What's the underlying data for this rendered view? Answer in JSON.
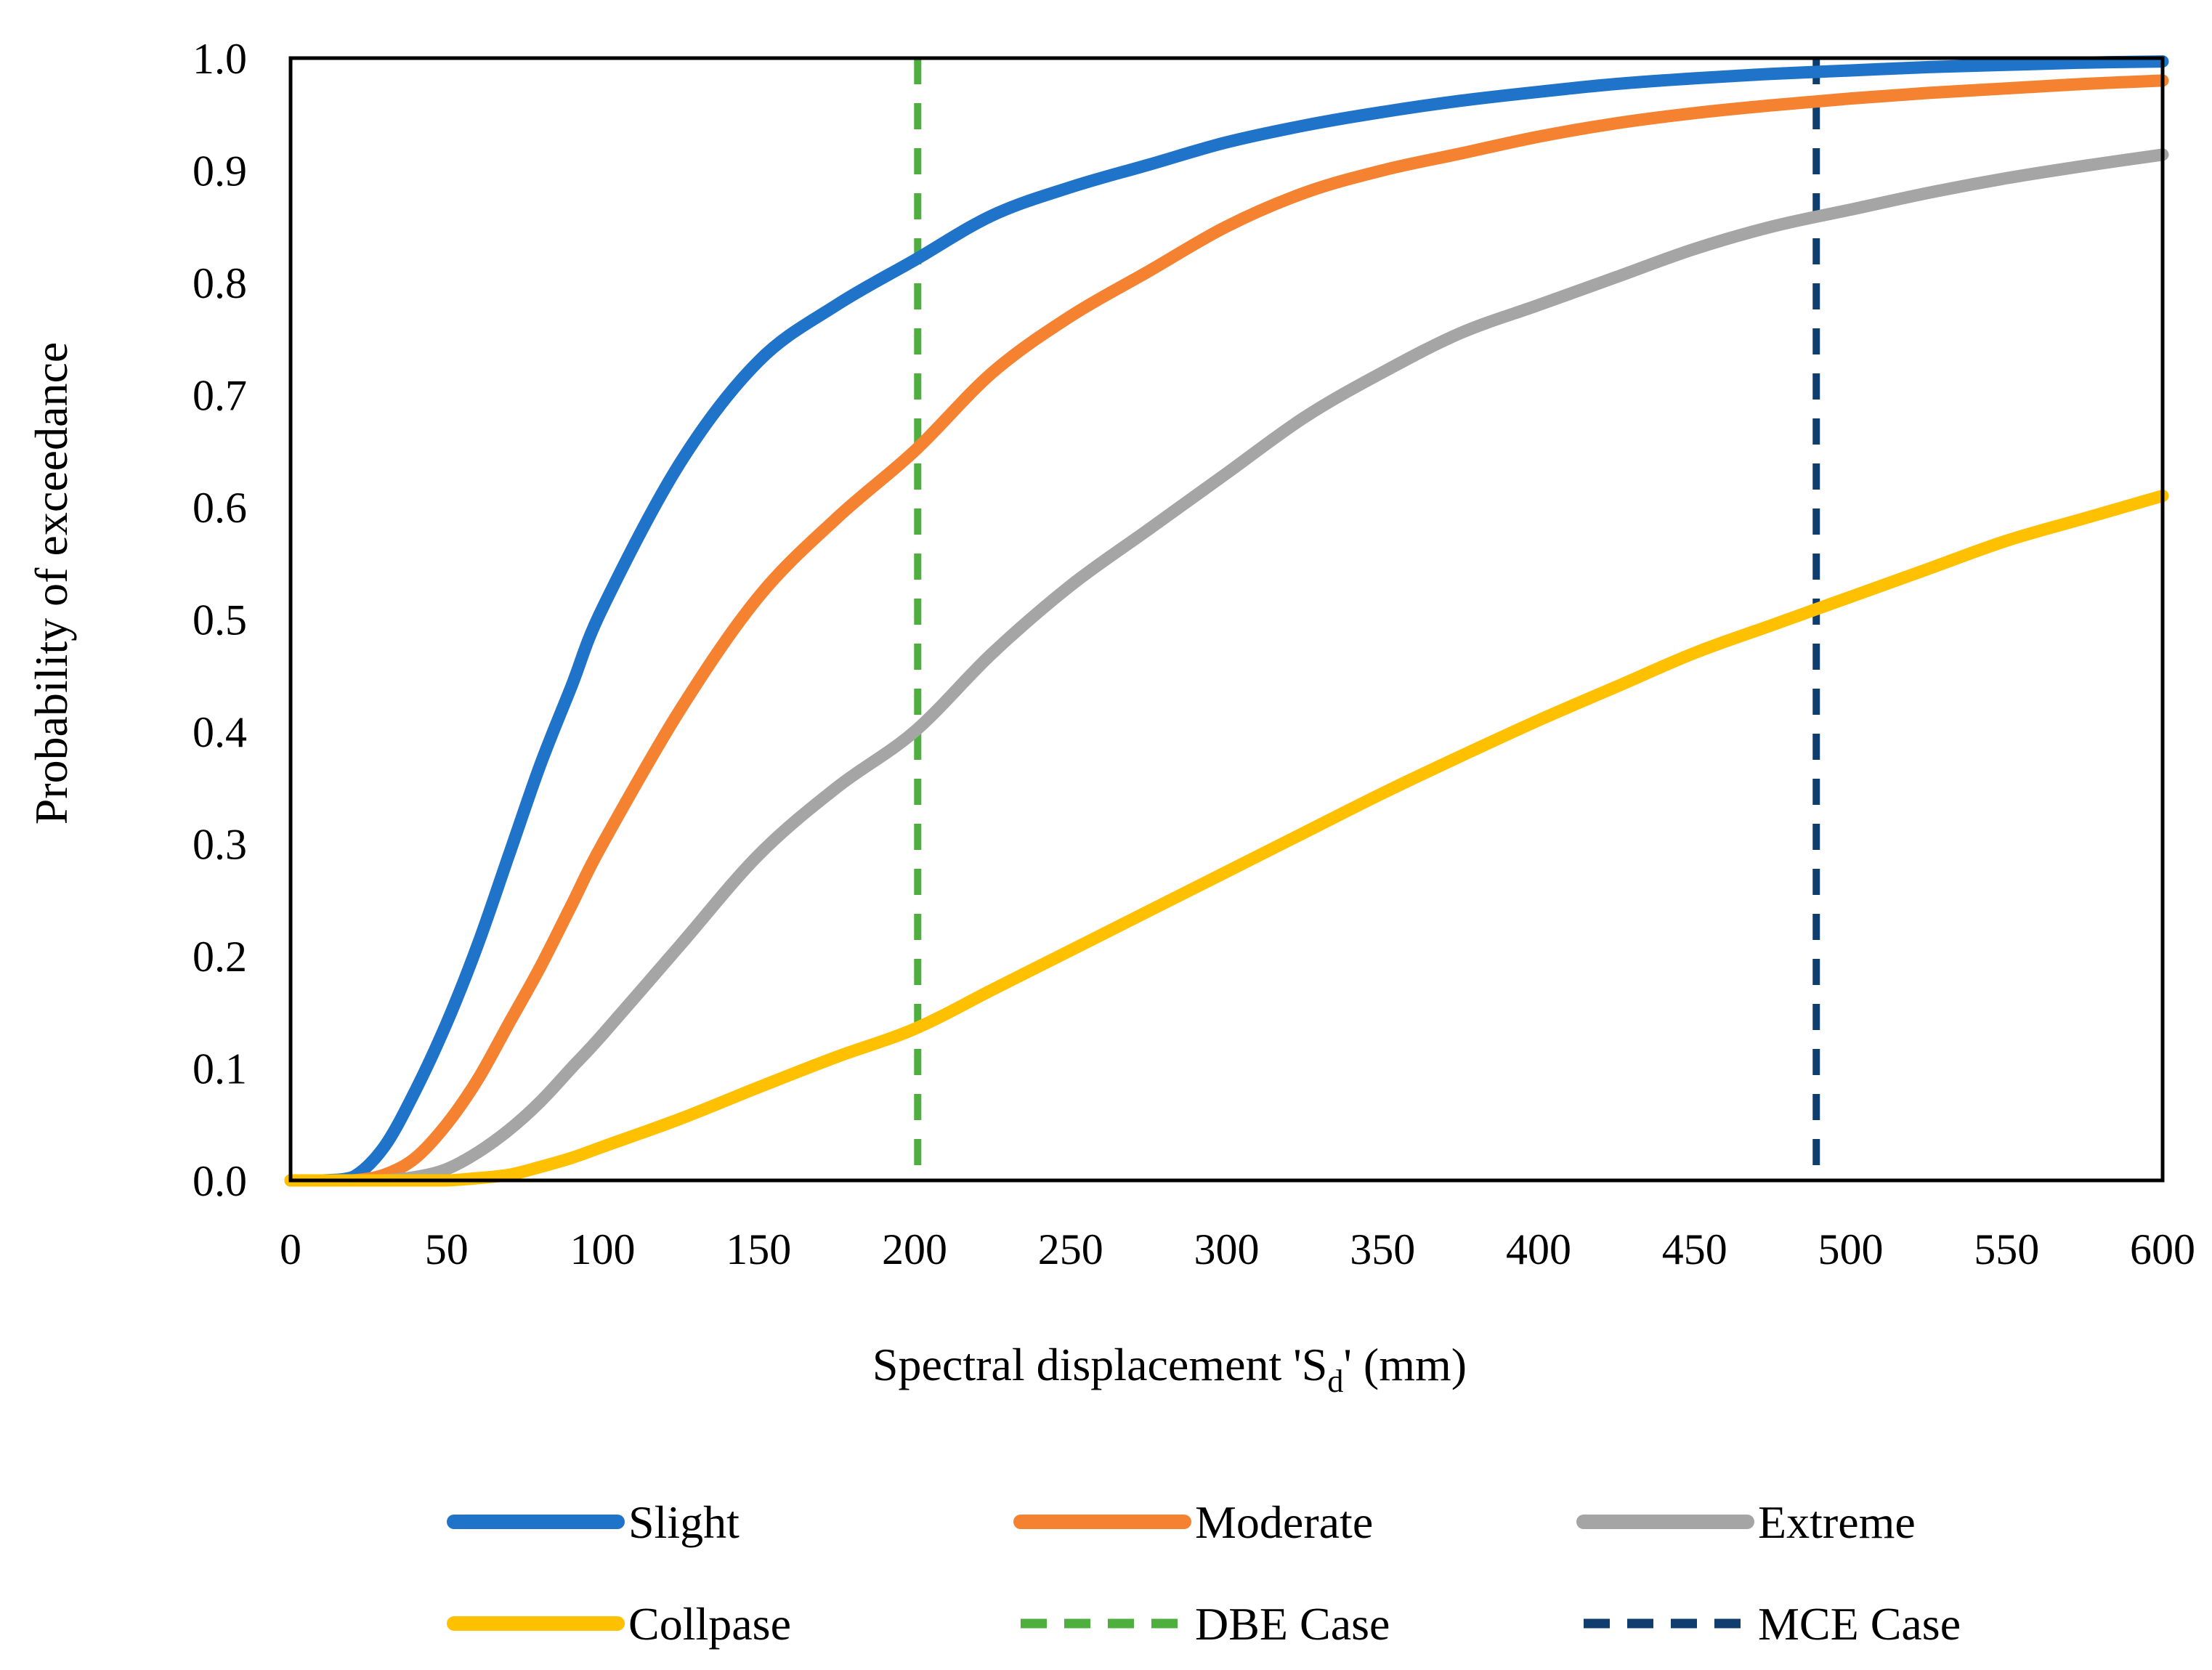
{
  "chart_data": {
    "type": "line",
    "title": "",
    "xlabel": "Spectral displacement 'S",
    "xlabel_sub": "d",
    "xlabel_tail": "' (mm)",
    "ylabel": "Probability of exceedance",
    "xlim": [
      0,
      600
    ],
    "ylim": [
      0,
      1.0
    ],
    "xticks": [
      0,
      50,
      100,
      150,
      200,
      250,
      300,
      350,
      400,
      450,
      500,
      550,
      600
    ],
    "xtick_labels": [
      "0",
      "50",
      "100",
      "150",
      "200",
      "250",
      "300",
      "350",
      "400",
      "450",
      "500",
      "550",
      "600"
    ],
    "yticks": [
      0,
      0.1,
      0.2,
      0.3,
      0.4,
      0.5,
      0.6,
      0.7,
      0.8,
      0.9,
      1.0
    ],
    "ytick_labels": [
      "0.0",
      "0.1",
      "0.2",
      "0.3",
      "0.4",
      "0.5",
      "0.6",
      "0.7",
      "0.8",
      "0.9",
      "1.0"
    ],
    "grid": false,
    "legend_position": "bottom",
    "x": [
      0,
      10,
      20,
      30,
      40,
      50,
      60,
      70,
      80,
      90,
      100,
      125,
      150,
      175,
      200,
      225,
      250,
      275,
      300,
      325,
      350,
      375,
      400,
      425,
      450,
      475,
      500,
      525,
      550,
      575,
      600
    ],
    "series": [
      {
        "name": "Slight",
        "color": "#1F74C9",
        "style": "solid",
        "values": [
          0.0,
          0.0,
          0.003,
          0.03,
          0.08,
          0.14,
          0.21,
          0.29,
          0.37,
          0.44,
          0.51,
          0.64,
          0.73,
          0.78,
          0.82,
          0.86,
          0.885,
          0.905,
          0.925,
          0.94,
          0.952,
          0.962,
          0.97,
          0.977,
          0.982,
          0.986,
          0.989,
          0.992,
          0.994,
          0.996,
          0.997
        ]
      },
      {
        "name": "Moderate",
        "color": "#F58231",
        "style": "solid",
        "values": [
          0.0,
          0.0,
          0.0,
          0.005,
          0.02,
          0.05,
          0.09,
          0.14,
          0.19,
          0.245,
          0.3,
          0.42,
          0.52,
          0.59,
          0.65,
          0.72,
          0.77,
          0.81,
          0.85,
          0.88,
          0.9,
          0.915,
          0.93,
          0.942,
          0.951,
          0.958,
          0.964,
          0.969,
          0.973,
          0.977,
          0.98
        ]
      },
      {
        "name": "Extreme",
        "color": "#A5A5A5",
        "style": "solid",
        "values": [
          0.0,
          0.0,
          0.0,
          0.0,
          0.003,
          0.01,
          0.025,
          0.045,
          0.07,
          0.1,
          0.13,
          0.21,
          0.29,
          0.35,
          0.4,
          0.47,
          0.53,
          0.58,
          0.63,
          0.68,
          0.72,
          0.755,
          0.78,
          0.805,
          0.83,
          0.85,
          0.865,
          0.88,
          0.893,
          0.904,
          0.914
        ]
      },
      {
        "name": "Collpase",
        "color": "#FFC000",
        "style": "solid",
        "values": [
          0.0,
          0.0,
          0.0,
          0.0,
          0.0,
          0.0,
          0.002,
          0.005,
          0.012,
          0.02,
          0.03,
          0.055,
          0.083,
          0.11,
          0.135,
          0.17,
          0.205,
          0.24,
          0.275,
          0.31,
          0.345,
          0.378,
          0.41,
          0.44,
          0.47,
          0.495,
          0.52,
          0.545,
          0.57,
          0.59,
          0.61
        ]
      }
    ],
    "reference_lines": [
      {
        "name": "DBE Case",
        "color": "#4EAF3E",
        "style": "dashed",
        "x_value": 201
      },
      {
        "name": "MCE Case",
        "color": "#0F3D6E",
        "style": "dashed",
        "x_value": 489
      }
    ],
    "legend": [
      {
        "label": "Slight",
        "color": "#1F74C9",
        "style": "solid"
      },
      {
        "label": "Moderate",
        "color": "#F58231",
        "style": "solid"
      },
      {
        "label": "Extreme",
        "color": "#A5A5A5",
        "style": "solid"
      },
      {
        "label": "Collpase",
        "color": "#FFC000",
        "style": "solid"
      },
      {
        "label": "DBE Case",
        "color": "#4EAF3E",
        "style": "dashed"
      },
      {
        "label": "MCE Case",
        "color": "#0F3D6E",
        "style": "dashed"
      }
    ]
  }
}
